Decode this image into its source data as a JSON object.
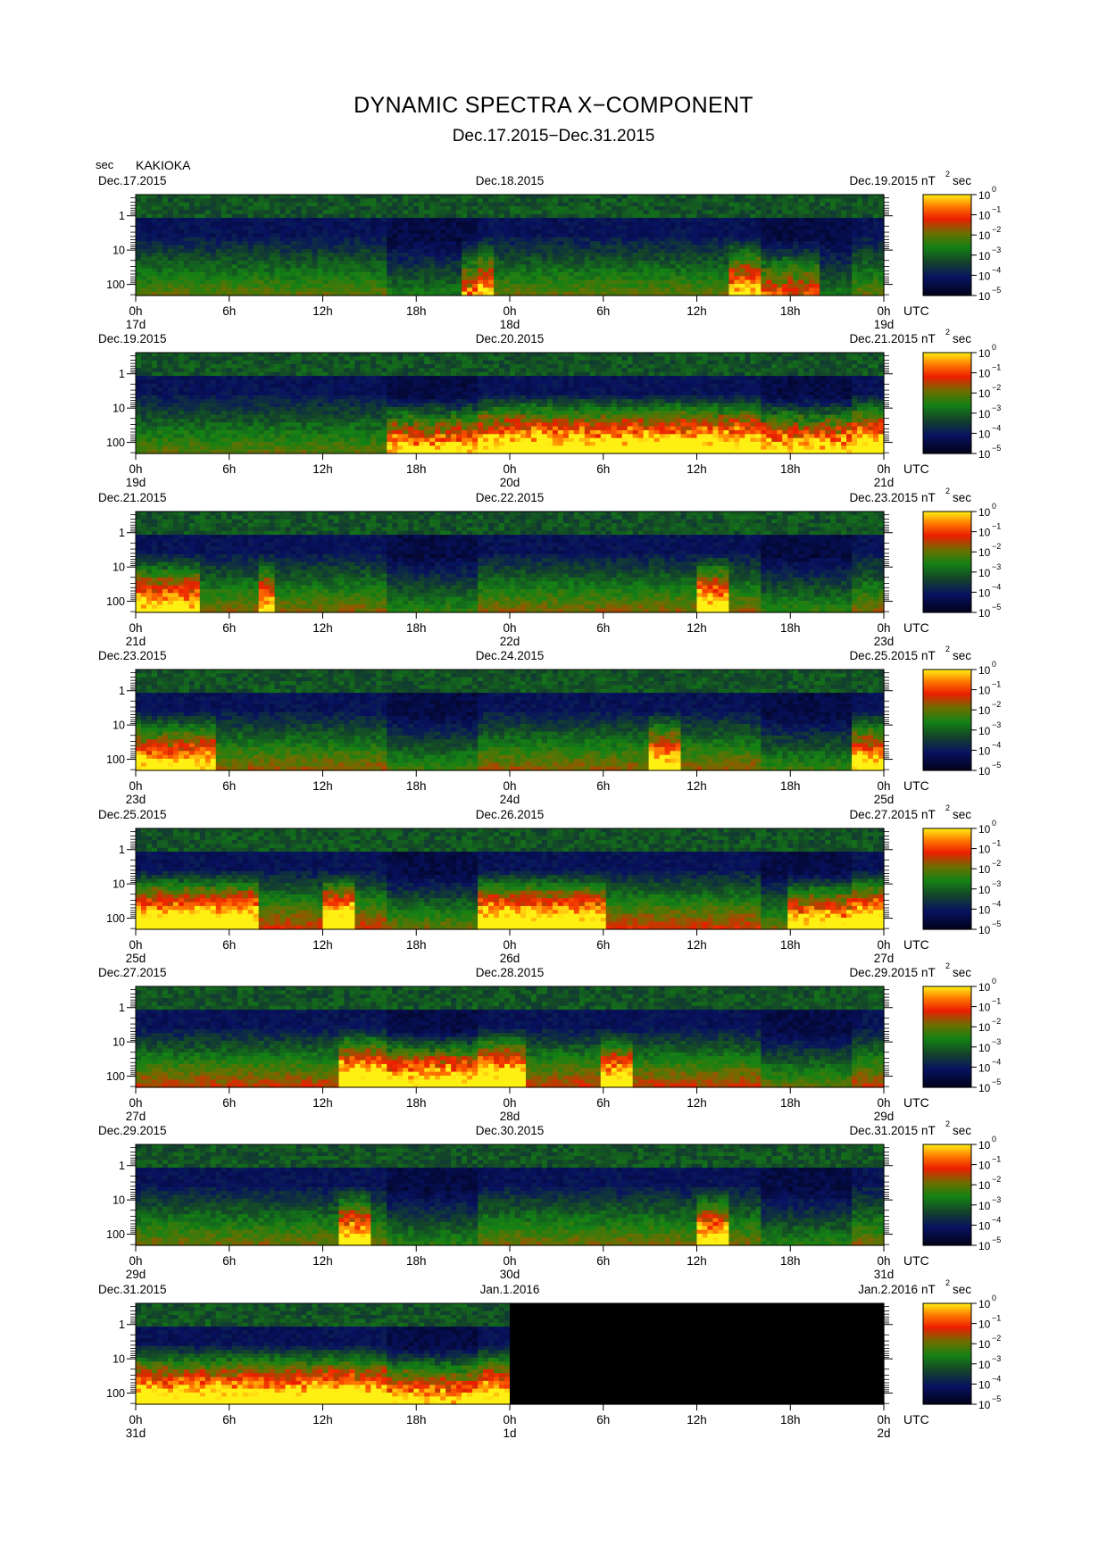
{
  "title": "DYNAMIC SPECTRA X−COMPONENT",
  "subtitle": "Dec.17.2015−Dec.31.2015",
  "station": "KAKIOKA",
  "y_unit": "sec",
  "colorbar": {
    "unit_base": "nT",
    "unit_exp": "2",
    "unit_suffix": "sec",
    "tick_base": "10",
    "tick_exponents": [
      "0",
      "−1",
      "−2",
      "−3",
      "−4",
      "−5"
    ],
    "colors": [
      "#ffff00",
      "#ff8000",
      "#ff0000",
      "#806000",
      "#008000",
      "#00205a",
      "#000020"
    ]
  },
  "x_tick_labels": [
    "0h",
    "6h",
    "12h",
    "18h",
    "0h",
    "6h",
    "12h",
    "18h",
    "0h"
  ],
  "x_unit": "UTC",
  "y_tick_labels": [
    "1",
    "10",
    "100"
  ],
  "panels": [
    {
      "date_left": "Dec.17.2015",
      "date_mid": "Dec.18.2015",
      "date_right": "Dec.19.2015",
      "day_left": "17d",
      "day_mid": "18d",
      "day_right": "19d"
    },
    {
      "date_left": "Dec.19.2015",
      "date_mid": "Dec.20.2015",
      "date_right": "Dec.21.2015",
      "day_left": "19d",
      "day_mid": "20d",
      "day_right": "21d"
    },
    {
      "date_left": "Dec.21.2015",
      "date_mid": "Dec.22.2015",
      "date_right": "Dec.23.2015",
      "day_left": "21d",
      "day_mid": "22d",
      "day_right": "23d"
    },
    {
      "date_left": "Dec.23.2015",
      "date_mid": "Dec.24.2015",
      "date_right": "Dec.25.2015",
      "day_left": "23d",
      "day_mid": "24d",
      "day_right": "25d"
    },
    {
      "date_left": "Dec.25.2015",
      "date_mid": "Dec.26.2015",
      "date_right": "Dec.27.2015",
      "day_left": "25d",
      "day_mid": "26d",
      "day_right": "27d"
    },
    {
      "date_left": "Dec.27.2015",
      "date_mid": "Dec.28.2015",
      "date_right": "Dec.29.2015",
      "day_left": "27d",
      "day_mid": "28d",
      "day_right": "29d"
    },
    {
      "date_left": "Dec.29.2015",
      "date_mid": "Dec.30.2015",
      "date_right": "Dec.31.2015",
      "day_left": "29d",
      "day_mid": "30d",
      "day_right": "31d"
    },
    {
      "date_left": "Dec.31.2015",
      "date_mid": "Jan.1.2016",
      "date_right": "Jan.2.2016",
      "day_left": "31d",
      "day_mid": "1d",
      "day_right": "2d"
    }
  ],
  "chart_data": {
    "type": "heatmap",
    "description_axes": "period (sec, log scale, ~0.5 to ~150) vs. time (UTC, 48 h per panel)",
    "xlim_hours": [
      0,
      48
    ],
    "y_scale": "log",
    "y_ticks": [
      1,
      10,
      100
    ],
    "colorbar_range_log10": [
      -5,
      0
    ],
    "panel_activity": [
      {
        "panel": 1,
        "bursts_hours": [
          [
            21,
            23,
            0.55
          ],
          [
            38,
            40,
            0.6
          ],
          [
            40,
            44,
            0.45
          ]
        ],
        "base": 0.35
      },
      {
        "panel": 2,
        "bursts_hours": [
          [
            16,
            24,
            0.8
          ],
          [
            24,
            48,
            0.85
          ]
        ],
        "base": 0.35
      },
      {
        "panel": 3,
        "bursts_hours": [
          [
            0,
            4,
            0.65
          ],
          [
            8,
            9,
            0.6
          ],
          [
            36,
            38,
            0.75
          ]
        ],
        "base": 0.4
      },
      {
        "panel": 4,
        "bursts_hours": [
          [
            0,
            5,
            0.6
          ],
          [
            33,
            35,
            0.7
          ],
          [
            46,
            48,
            0.65
          ]
        ],
        "base": 0.42
      },
      {
        "panel": 5,
        "bursts_hours": [
          [
            0,
            8,
            0.75
          ],
          [
            12,
            14,
            0.8
          ],
          [
            22,
            30,
            0.7
          ],
          [
            42,
            48,
            0.75
          ]
        ],
        "base": 0.5
      },
      {
        "panel": 6,
        "bursts_hours": [
          [
            13,
            25,
            0.8
          ],
          [
            30,
            32,
            0.65
          ]
        ],
        "base": 0.48
      },
      {
        "panel": 7,
        "bursts_hours": [
          [
            13,
            15,
            0.75
          ],
          [
            36,
            38,
            0.7
          ]
        ],
        "base": 0.38
      },
      {
        "panel": 8,
        "bursts_hours": [
          [
            0,
            24,
            0.7
          ],
          [
            12,
            14,
            0.8
          ]
        ],
        "base": 0.45,
        "no_data_from_hour": 24
      }
    ]
  }
}
